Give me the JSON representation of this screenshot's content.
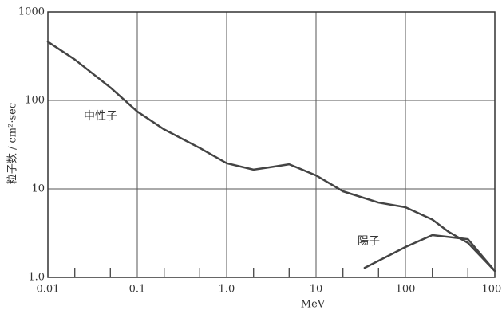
{
  "chart_data": {
    "type": "line",
    "xlabel": "MeV",
    "ylabel": "粒子数 / cm²·sec",
    "xscale": "log",
    "yscale": "log",
    "grid": true,
    "xlim": [
      0.01,
      1000
    ],
    "ylim": [
      1,
      1000
    ],
    "xticks": [
      0.01,
      0.1,
      {
        "value": 1,
        "label": "1.0"
      },
      10,
      100,
      1000
    ],
    "yticks": [
      {
        "value": 1,
        "label": "1.0"
      },
      10,
      100,
      1000
    ],
    "minor_xticks": [
      0.02,
      0.05,
      0.2,
      0.5,
      2,
      5,
      20,
      50,
      200,
      500
    ],
    "series": [
      {
        "name": "中性子",
        "color": "#444444",
        "x": [
          0.01,
          0.02,
          0.05,
          0.1,
          0.2,
          0.5,
          1,
          2,
          3,
          5,
          10,
          20,
          50,
          100,
          200,
          300,
          500,
          1000
        ],
        "values": [
          460,
          290,
          140,
          75,
          47,
          29,
          19.5,
          16.5,
          17.5,
          19,
          14.2,
          9.4,
          7.0,
          6.2,
          4.5,
          3.3,
          2.45,
          1.18
        ]
      },
      {
        "name": "陽子",
        "color": "#444444",
        "x": [
          35,
          100,
          200,
          500,
          1000
        ],
        "values": [
          1.28,
          2.2,
          3.0,
          2.7,
          1.18
        ]
      }
    ]
  }
}
